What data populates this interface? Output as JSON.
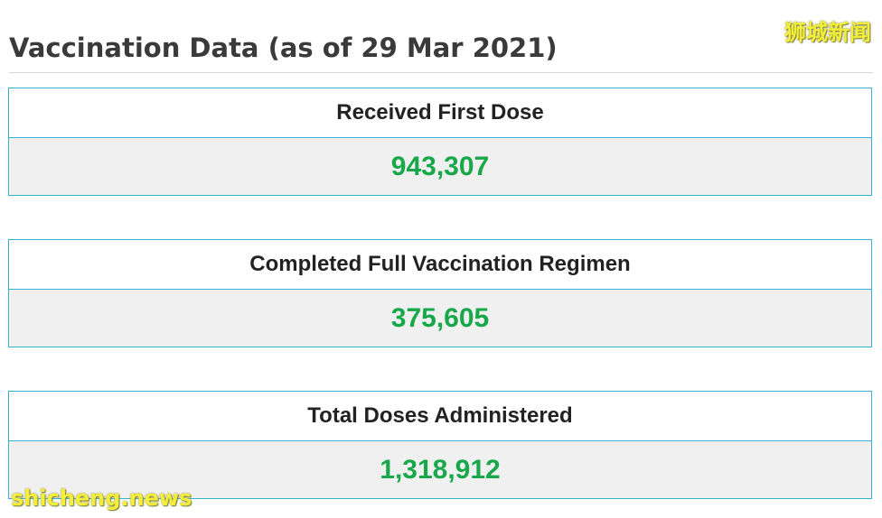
{
  "page": {
    "title": "Vaccination Data (as of 29 Mar 2021)"
  },
  "stats": [
    {
      "label": "Received First Dose",
      "value": "943,307"
    },
    {
      "label": "Completed Full Vaccination Regimen",
      "value": "375,605"
    },
    {
      "label": "Total Doses Administered",
      "value": "1,318,912"
    }
  ],
  "watermarks": {
    "top_right": "狮城新闻",
    "bottom_left": "shicheng.news"
  },
  "colors": {
    "value_green": "#18a84a",
    "card_border": "#34b3cf",
    "value_background": "#f0f0f0",
    "watermark_yellow": "#f2ee3a"
  }
}
